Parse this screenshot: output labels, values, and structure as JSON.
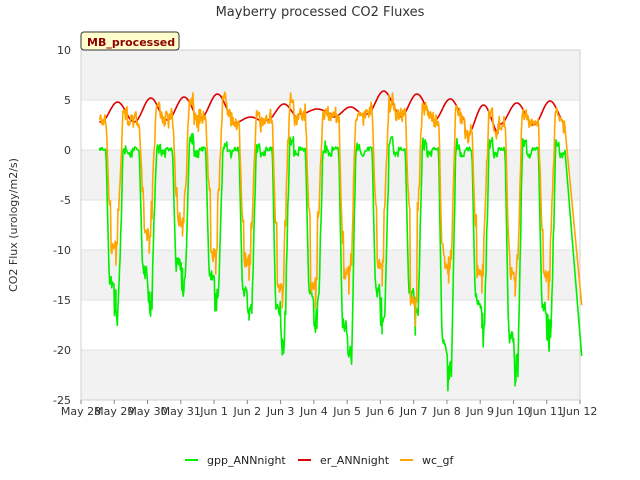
{
  "chart_data": {
    "type": "line",
    "title": "Mayberry processed CO2 Fluxes",
    "ylabel": "CO2 Flux (urology/m2/s)",
    "xlabel": "",
    "badge": "MB_processed",
    "ylim": [
      -25,
      10
    ],
    "yticks": [
      "10",
      "5",
      "0",
      "-5",
      "-10",
      "-15",
      "-20",
      "-25"
    ],
    "xlim": [
      0,
      15
    ],
    "xticks": [
      "May 28",
      "May 29",
      "May 30",
      "May 31",
      "Jun 1",
      "Jun 2",
      "Jun 3",
      "Jun 4",
      "Jun 5",
      "Jun 6",
      "Jun 7",
      "Jun 8",
      "Jun 9",
      "Jun 10",
      "Jun 11",
      "Jun 12"
    ],
    "grid": true,
    "bands": [
      [
        5,
        10
      ],
      [
        -5,
        0
      ],
      [
        -15,
        -10
      ],
      [
        -25,
        -20
      ]
    ],
    "legend_position": "bottom",
    "series": [
      {
        "name": "gpp_ANNnight",
        "color": "#00ee00",
        "day_min": [
          -15.9,
          -14.8,
          -13.9,
          -15.1,
          -17.0,
          -18.9,
          -17.5,
          -20.7,
          -16.9,
          -17.0,
          -23.0,
          -17.8,
          -22.0,
          -18.8,
          -20.6
        ],
        "day_peak": [
          0.3,
          0.5,
          1.7,
          0.4,
          0.3,
          1.2,
          0.7,
          1.0,
          1.1,
          0.8,
          0.9,
          0.9,
          0.7,
          0.6,
          0.9
        ]
      },
      {
        "name": "er_ANNnight",
        "color": "#dd0000",
        "day_max": [
          4.8,
          5.2,
          5.3,
          5.6,
          3.3,
          4.6,
          4.1,
          4.3,
          5.9,
          5.6,
          5.1,
          4.5,
          4.7,
          4.9,
          5.2
        ],
        "day_min": [
          2.8,
          2.8,
          3.0,
          3.2,
          2.7,
          3.0,
          3.6,
          3.3,
          3.6,
          3.3,
          2.9,
          1.5,
          2.6,
          2.5,
          2.1
        ]
      },
      {
        "name": "wc_gf",
        "color": "#ffa500",
        "day_min": [
          -11.5,
          -10.3,
          -8.6,
          -12.4,
          -13.0,
          -15.8,
          -15.8,
          -14.4,
          -13.6,
          -17.6,
          -13.3,
          -14.3,
          -14.6,
          -15.0,
          -15.5
        ],
        "day_peak": [
          4.3,
          5.0,
          5.3,
          6.8,
          4.0,
          6.1,
          4.3,
          4.4,
          5.2,
          5.0,
          4.7,
          4.1,
          4.3,
          4.5,
          4.7
        ]
      }
    ]
  }
}
